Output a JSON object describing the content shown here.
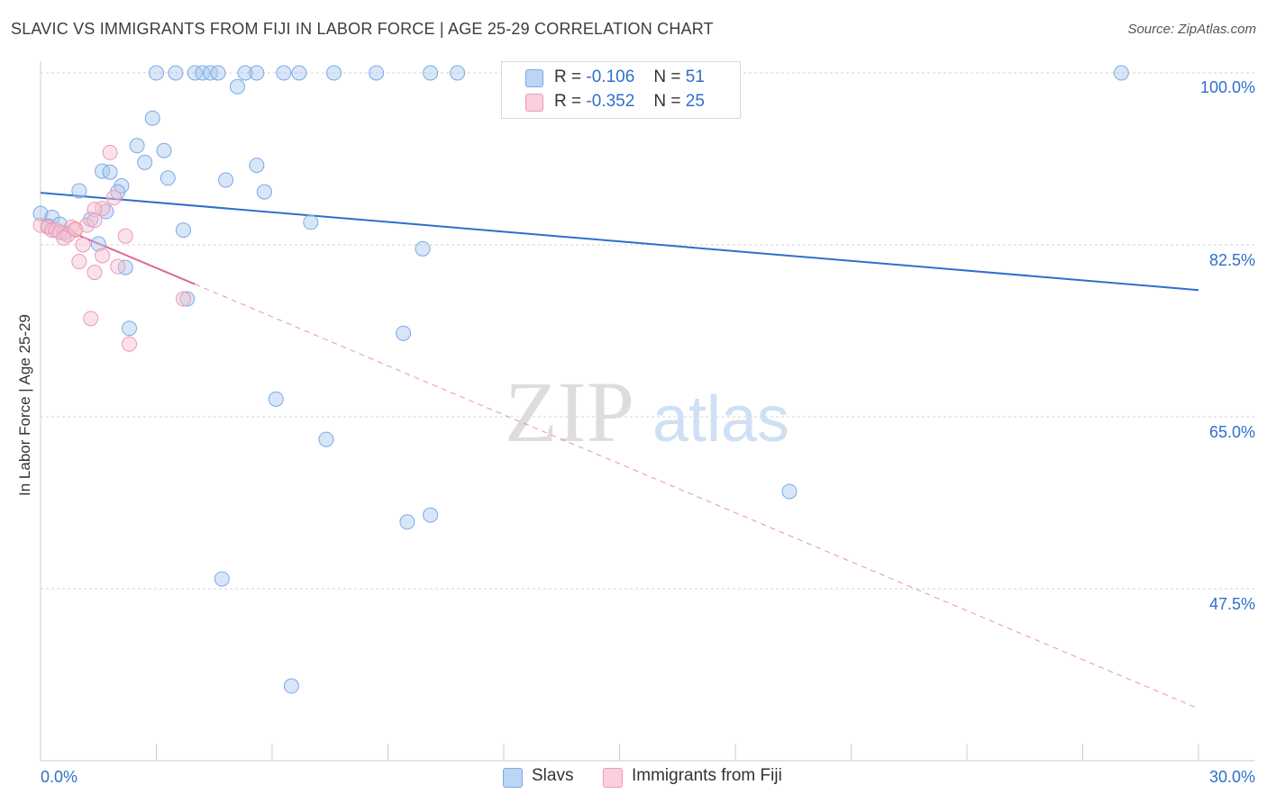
{
  "title": "SLAVIC VS IMMIGRANTS FROM FIJI IN LABOR FORCE | AGE 25-29 CORRELATION CHART",
  "source": "Source: ZipAtlas.com",
  "watermark": {
    "zip": "ZIP",
    "atlas": "atlas"
  },
  "legend_top": [
    {
      "r_label": "R =",
      "r_value": "-0.106",
      "n_label": "N =",
      "n_value": "51"
    },
    {
      "r_label": "R =",
      "r_value": "-0.352",
      "n_label": "N =",
      "n_value": "25"
    }
  ],
  "colors": {
    "slavs_fill": "#a9c8f0",
    "slavs_stroke": "#7aaae6",
    "slavs_line": "#2f6fca",
    "fiji_fill": "#f7bfd0",
    "fiji_stroke": "#ec9ab5",
    "fiji_line": "#e0678f",
    "axis_text": "#2f6fca"
  },
  "chart_data": {
    "type": "scatter",
    "title": "SLAVIC VS IMMIGRANTS FROM FIJI IN LABOR FORCE | AGE 25-29 CORRELATION CHART",
    "xlabel": "",
    "ylabel": "In Labor Force | Age 25-29",
    "xlim": [
      0,
      30
    ],
    "ylim": [
      32,
      102
    ],
    "x_tick_labels": [
      "0.0%",
      "30.0%"
    ],
    "y_ticks": [
      47.5,
      65.0,
      82.5,
      100.0
    ],
    "y_tick_labels": [
      "47.5%",
      "65.0%",
      "82.5%",
      "100.0%"
    ],
    "grid": true,
    "series": [
      {
        "name": "Slavs",
        "r": -0.106,
        "n": 51,
        "trend": {
          "x": [
            0,
            30
          ],
          "y": [
            87.8,
            77.9
          ]
        },
        "points": [
          [
            3.0,
            100.0
          ],
          [
            3.5,
            100.0
          ],
          [
            4.0,
            100.0
          ],
          [
            4.2,
            100.0
          ],
          [
            4.4,
            100.0
          ],
          [
            4.6,
            100.0
          ],
          [
            5.3,
            100.0
          ],
          [
            5.6,
            100.0
          ],
          [
            6.3,
            100.0
          ],
          [
            6.7,
            100.0
          ],
          [
            7.6,
            100.0
          ],
          [
            8.7,
            100.0
          ],
          [
            10.1,
            100.0
          ],
          [
            10.8,
            100.0
          ],
          [
            28.0,
            100.0
          ],
          [
            5.1,
            98.6
          ],
          [
            2.9,
            95.4
          ],
          [
            2.5,
            92.6
          ],
          [
            3.2,
            92.1
          ],
          [
            2.7,
            90.9
          ],
          [
            5.6,
            90.6
          ],
          [
            1.6,
            90.0
          ],
          [
            1.8,
            89.9
          ],
          [
            3.3,
            89.3
          ],
          [
            4.8,
            89.1
          ],
          [
            2.1,
            88.5
          ],
          [
            1.0,
            88.0
          ],
          [
            2.0,
            87.9
          ],
          [
            5.8,
            87.9
          ],
          [
            1.7,
            85.9
          ],
          [
            0.0,
            85.7
          ],
          [
            0.3,
            85.3
          ],
          [
            1.3,
            85.1
          ],
          [
            7.0,
            84.8
          ],
          [
            0.5,
            84.6
          ],
          [
            0.2,
            84.4
          ],
          [
            3.7,
            84.0
          ],
          [
            0.6,
            83.7
          ],
          [
            1.5,
            82.6
          ],
          [
            9.9,
            82.1
          ],
          [
            2.2,
            80.2
          ],
          [
            3.8,
            77.0
          ],
          [
            2.3,
            74.0
          ],
          [
            9.4,
            73.5
          ],
          [
            6.1,
            66.8
          ],
          [
            7.4,
            62.7
          ],
          [
            19.4,
            57.4
          ],
          [
            10.1,
            55.0
          ],
          [
            9.5,
            54.3
          ],
          [
            4.7,
            48.5
          ],
          [
            6.5,
            37.6
          ]
        ]
      },
      {
        "name": "Immigrants from Fiji",
        "r": -0.352,
        "n": 25,
        "trend_solid": {
          "x": [
            0,
            4.0
          ],
          "y": [
            85.1,
            78.5
          ]
        },
        "trend_dashed": {
          "x": [
            4.0,
            30
          ],
          "y": [
            78.5,
            35.3
          ]
        },
        "points": [
          [
            1.8,
            91.9
          ],
          [
            1.9,
            87.3
          ],
          [
            1.6,
            86.2
          ],
          [
            1.4,
            86.1
          ],
          [
            0.0,
            84.5
          ],
          [
            0.2,
            84.3
          ],
          [
            0.3,
            84.0
          ],
          [
            0.4,
            84.0
          ],
          [
            0.8,
            84.3
          ],
          [
            0.9,
            84.0
          ],
          [
            1.2,
            84.5
          ],
          [
            0.5,
            83.8
          ],
          [
            0.7,
            83.5
          ],
          [
            1.4,
            85.0
          ],
          [
            0.6,
            83.2
          ],
          [
            2.2,
            83.4
          ],
          [
            1.1,
            82.5
          ],
          [
            1.6,
            81.4
          ],
          [
            1.0,
            80.8
          ],
          [
            2.0,
            80.3
          ],
          [
            1.4,
            79.7
          ],
          [
            3.7,
            77.0
          ],
          [
            1.3,
            75.0
          ],
          [
            2.3,
            72.4
          ],
          [
            0.9,
            84.1
          ]
        ]
      }
    ]
  },
  "bottom_legend": [
    {
      "label": "Slavs"
    },
    {
      "label": "Immigrants from Fiji"
    }
  ]
}
